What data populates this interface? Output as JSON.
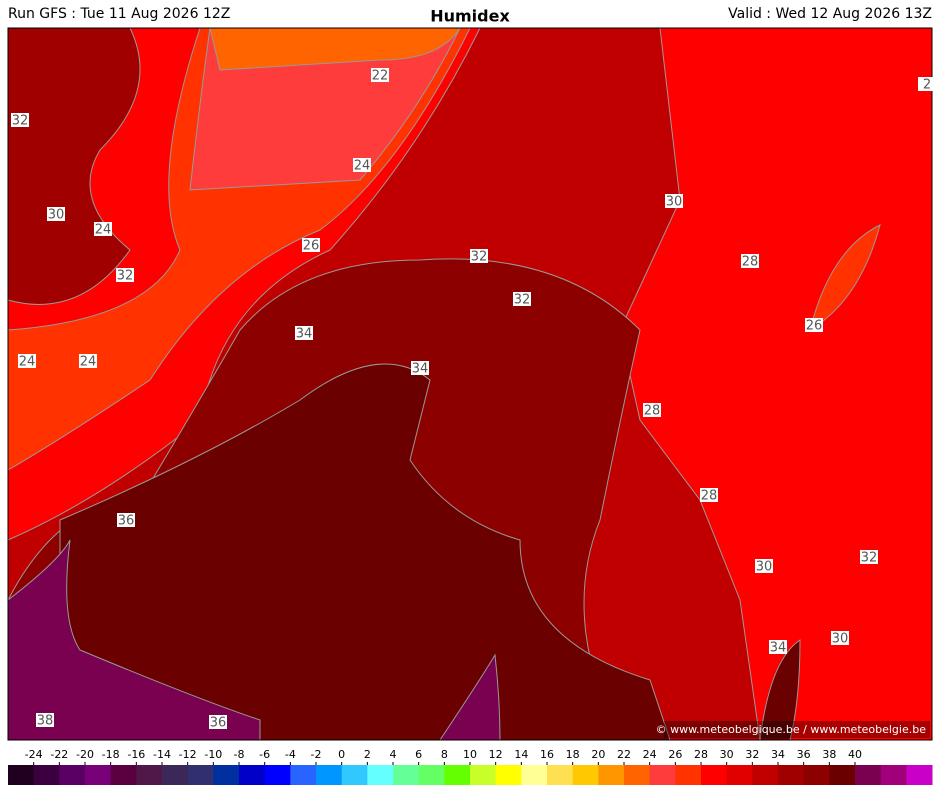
{
  "header": {
    "left": "Run GFS : Tue 11 Aug 2026 12Z",
    "title": "Humidex",
    "right": "Valid : Wed 12 Aug 2026 13Z"
  },
  "contour_labels": [
    "22",
    "32",
    "24",
    "30",
    "24",
    "26",
    "32",
    "32",
    "32",
    "34",
    "24",
    "24",
    "34",
    "28",
    "26",
    "30",
    "28",
    "28",
    "36",
    "32",
    "30",
    "30",
    "34",
    "38",
    "36",
    "2"
  ],
  "credit": "© www.meteobelgique.be / www.meteobelgie.be",
  "legend": {
    "ticks": [
      -24,
      -22,
      -20,
      -18,
      -16,
      -14,
      -12,
      -10,
      -8,
      -6,
      -4,
      -2,
      0,
      2,
      4,
      6,
      8,
      10,
      12,
      14,
      16,
      18,
      20,
      22,
      24,
      26,
      28,
      30,
      32,
      34,
      36,
      38,
      40
    ],
    "colors": [
      "#200020",
      "#3c0040",
      "#5a0064",
      "#780078",
      "#5a0040",
      "#501848",
      "#3c2858",
      "#303070",
      "#0030a0",
      "#0000c8",
      "#0000ff",
      "#2864ff",
      "#0096ff",
      "#30c8ff",
      "#64ffff",
      "#64ff96",
      "#64ff64",
      "#64ff00",
      "#c8ff28",
      "#ffff00",
      "#ffff96",
      "#ffe050",
      "#ffc800",
      "#ff9600",
      "#ff6400",
      "#ff3c3c",
      "#ff3200",
      "#ff0000",
      "#e00000",
      "#c00000",
      "#a00000",
      "#8c0000",
      "#6a0000",
      "#7a0050",
      "#a0007a",
      "#c800c8"
    ]
  }
}
